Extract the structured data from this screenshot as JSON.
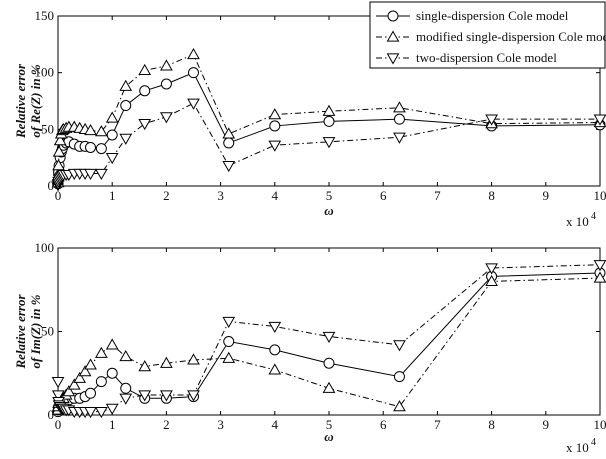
{
  "chart_data": [
    {
      "type": "line",
      "title": "",
      "xlabel": "ω",
      "ylabel": "Relative error of Re(Z) in %",
      "ylabel_lines": [
        "Relative error",
        "of Re(Z) in %"
      ],
      "x_multiplier_label": "x 10",
      "x_multiplier_exp": "4",
      "xlim": [
        0,
        10
      ],
      "ylim": [
        0,
        150
      ],
      "xticks": [
        "0",
        "1",
        "2",
        "3",
        "4",
        "5",
        "6",
        "7",
        "8",
        "9",
        "10"
      ],
      "yticks": [
        "0",
        "50",
        "100",
        "150"
      ],
      "grid": false,
      "legend_position": "top-right",
      "series": [
        {
          "name": "single-dispersion  Cole model",
          "marker": "circle",
          "dash": "solid",
          "x": [
            0.001,
            0.005,
            0.01,
            0.02,
            0.04,
            0.06,
            0.08,
            0.1,
            0.15,
            0.2,
            0.3,
            0.4,
            0.5,
            0.6,
            0.8,
            1.0,
            1.25,
            1.6,
            2.0,
            2.5,
            3.15,
            4.0,
            5.0,
            6.3,
            8.0,
            10.0
          ],
          "y": [
            2,
            5,
            12,
            18,
            25,
            30,
            33,
            36,
            38,
            39,
            37,
            35,
            35,
            34,
            33,
            45,
            71,
            84,
            90,
            100,
            38,
            53,
            57,
            59,
            53,
            54
          ]
        },
        {
          "name": "modified single-dispersion  Cole model",
          "marker": "triangle-up",
          "dash": "dashdot",
          "x": [
            0.001,
            0.005,
            0.01,
            0.02,
            0.04,
            0.06,
            0.08,
            0.1,
            0.15,
            0.2,
            0.3,
            0.4,
            0.5,
            0.6,
            0.8,
            1.0,
            1.25,
            1.6,
            2.0,
            2.5,
            3.15,
            4.0,
            5.0,
            6.3,
            8.0,
            10.0
          ],
          "y": [
            3,
            8,
            18,
            30,
            40,
            46,
            49,
            50,
            51,
            52,
            52,
            51,
            50,
            49,
            48,
            60,
            88,
            102,
            106,
            116,
            46,
            63,
            66,
            69,
            55,
            56
          ]
        },
        {
          "name": "two-dispersion  Cole model",
          "marker": "triangle-down",
          "dash": "dashdot",
          "x": [
            0.001,
            0.005,
            0.01,
            0.02,
            0.04,
            0.06,
            0.08,
            0.1,
            0.15,
            0.2,
            0.3,
            0.4,
            0.5,
            0.6,
            0.8,
            1.0,
            1.25,
            1.6,
            2.0,
            2.5,
            3.15,
            4.0,
            5.0,
            6.3,
            8.0,
            10.0
          ],
          "y": [
            1,
            2,
            4,
            6,
            7,
            8,
            9,
            10,
            10,
            10,
            11,
            11,
            11,
            11,
            11,
            25,
            42,
            55,
            61,
            73,
            18,
            36,
            39,
            43,
            59,
            59
          ]
        }
      ]
    },
    {
      "type": "line",
      "title": "",
      "xlabel": "ω",
      "ylabel": "Relative error of Im(Z) in %",
      "ylabel_lines": [
        "Relative error",
        "of Im(Z) in %"
      ],
      "x_multiplier_label": "x 10",
      "x_multiplier_exp": "4",
      "xlim": [
        0,
        10
      ],
      "ylim": [
        0,
        100
      ],
      "xticks": [
        "0",
        "1",
        "2",
        "3",
        "4",
        "5",
        "6",
        "7",
        "8",
        "9",
        "10"
      ],
      "yticks": [
        "0",
        "50",
        "100"
      ],
      "grid": false,
      "series": [
        {
          "name": "single-dispersion  Cole model",
          "marker": "circle",
          "dash": "solid",
          "x": [
            0.001,
            0.005,
            0.01,
            0.02,
            0.04,
            0.06,
            0.08,
            0.1,
            0.15,
            0.2,
            0.3,
            0.4,
            0.5,
            0.6,
            0.8,
            1.0,
            1.25,
            1.6,
            2.0,
            2.5,
            3.15,
            4.0,
            5.0,
            6.3,
            8.0,
            10.0
          ],
          "y": [
            2,
            3,
            4,
            5,
            6,
            7,
            7,
            8,
            9,
            9,
            10,
            10,
            11,
            13,
            20,
            25,
            16,
            10,
            10,
            11,
            44,
            39,
            31,
            23,
            83,
            85
          ]
        },
        {
          "name": "modified single-dispersion  Cole model",
          "marker": "triangle-up",
          "dash": "dashdot",
          "x": [
            0.001,
            0.005,
            0.01,
            0.02,
            0.04,
            0.06,
            0.08,
            0.1,
            0.15,
            0.2,
            0.3,
            0.4,
            0.5,
            0.6,
            0.8,
            1.0,
            1.25,
            1.6,
            2.0,
            2.5,
            3.15,
            4.0,
            5.0,
            6.3,
            8.0,
            10.0
          ],
          "y": [
            3,
            5,
            7,
            8,
            9,
            10,
            10,
            10,
            12,
            14,
            18,
            22,
            26,
            30,
            37,
            42,
            35,
            29,
            31,
            33,
            34,
            27,
            16,
            5,
            80,
            82
          ]
        },
        {
          "name": "two-dispersion  Cole model",
          "marker": "triangle-down",
          "dash": "dashdot",
          "x": [
            0.001,
            0.005,
            0.01,
            0.02,
            0.04,
            0.06,
            0.08,
            0.1,
            0.15,
            0.2,
            0.3,
            0.4,
            0.5,
            0.6,
            0.8,
            1.0,
            1.25,
            1.6,
            2.0,
            2.5,
            3.15,
            4.0,
            5.0,
            6.3,
            8.0,
            10.0
          ],
          "y": [
            20,
            12,
            8,
            6,
            5,
            4,
            4,
            4,
            3,
            3,
            2,
            2,
            2,
            2,
            2,
            4,
            10,
            12,
            12,
            12,
            56,
            53,
            47,
            42,
            88,
            90
          ]
        }
      ]
    }
  ]
}
